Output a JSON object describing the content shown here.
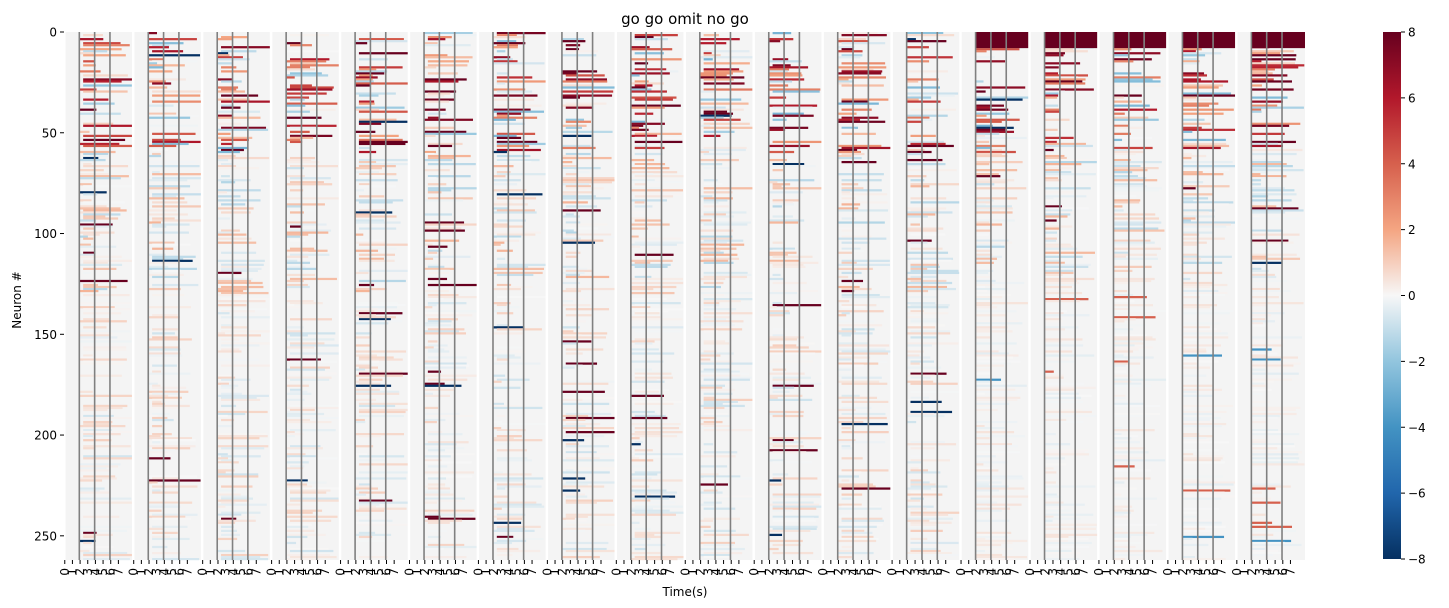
{
  "chart_data": {
    "type": "heatmap",
    "title": "go go omit no go",
    "xlabel": "Time(s)",
    "ylabel": "Neuron #",
    "y_ticks": [
      0,
      50,
      100,
      150,
      200,
      250
    ],
    "y_range": [
      0,
      262
    ],
    "n_neurons": 262,
    "n_panels": 18,
    "x_tick_labels_per_panel": [
      "0",
      "1",
      "2",
      "3",
      "4",
      "5",
      "6",
      "7"
    ],
    "colorbar": {
      "colormap": "RdBu_r",
      "min": -8,
      "max": 8,
      "ticks": [
        -8,
        -6,
        -4,
        -2,
        0,
        2,
        4,
        6,
        8
      ],
      "tick_labels": [
        "−8",
        "−6",
        "−4",
        "−2",
        "0",
        "2",
        "4",
        "6",
        "8"
      ],
      "color_low": "#053061",
      "color_mid": "#f7f7f7",
      "color_high": "#67001f"
    },
    "event_lines_seconds": [
      2,
      4,
      6
    ],
    "event_line_color": "#808080"
  }
}
